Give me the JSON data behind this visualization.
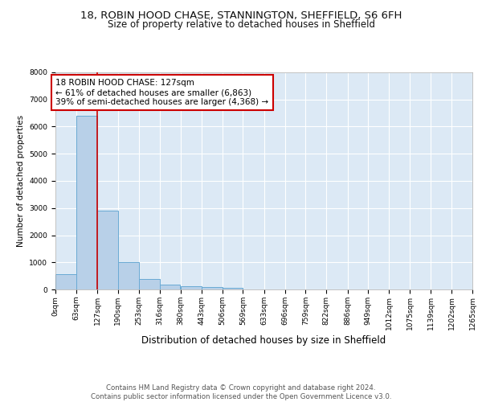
{
  "title1": "18, ROBIN HOOD CHASE, STANNINGTON, SHEFFIELD, S6 6FH",
  "title2": "Size of property relative to detached houses in Sheffield",
  "xlabel": "Distribution of detached houses by size in Sheffield",
  "ylabel": "Number of detached properties",
  "bin_edges": [
    0,
    63,
    127,
    190,
    253,
    316,
    380,
    443,
    506,
    569,
    633,
    696,
    759,
    822,
    886,
    949,
    1012,
    1075,
    1139,
    1202,
    1265
  ],
  "bar_heights": [
    550,
    6400,
    2900,
    1000,
    375,
    175,
    125,
    75,
    50,
    10,
    5,
    3,
    2,
    2,
    1,
    1,
    1,
    0,
    0,
    0
  ],
  "bar_color": "#b8d0e8",
  "bar_edgecolor": "#6aaad4",
  "bar_linewidth": 0.7,
  "vline_x": 127,
  "vline_color": "#cc0000",
  "vline_linewidth": 1.2,
  "annotation_text": "18 ROBIN HOOD CHASE: 127sqm\n← 61% of detached houses are smaller (6,863)\n39% of semi-detached houses are larger (4,368) →",
  "annotation_box_color": "#ffffff",
  "annotation_box_edgecolor": "#cc0000",
  "annotation_fontsize": 7.5,
  "ylim": [
    0,
    8000
  ],
  "yticks": [
    0,
    1000,
    2000,
    3000,
    4000,
    5000,
    6000,
    7000,
    8000
  ],
  "grid_color": "#ffffff",
  "bg_color": "#dce9f5",
  "fig_bg_color": "#ffffff",
  "footer": "Contains HM Land Registry data © Crown copyright and database right 2024.\nContains public sector information licensed under the Open Government Licence v3.0.",
  "title1_fontsize": 9.5,
  "title2_fontsize": 8.5,
  "xlabel_fontsize": 8.5,
  "ylabel_fontsize": 7.5,
  "tick_fontsize": 6.5,
  "footer_fontsize": 6.2
}
